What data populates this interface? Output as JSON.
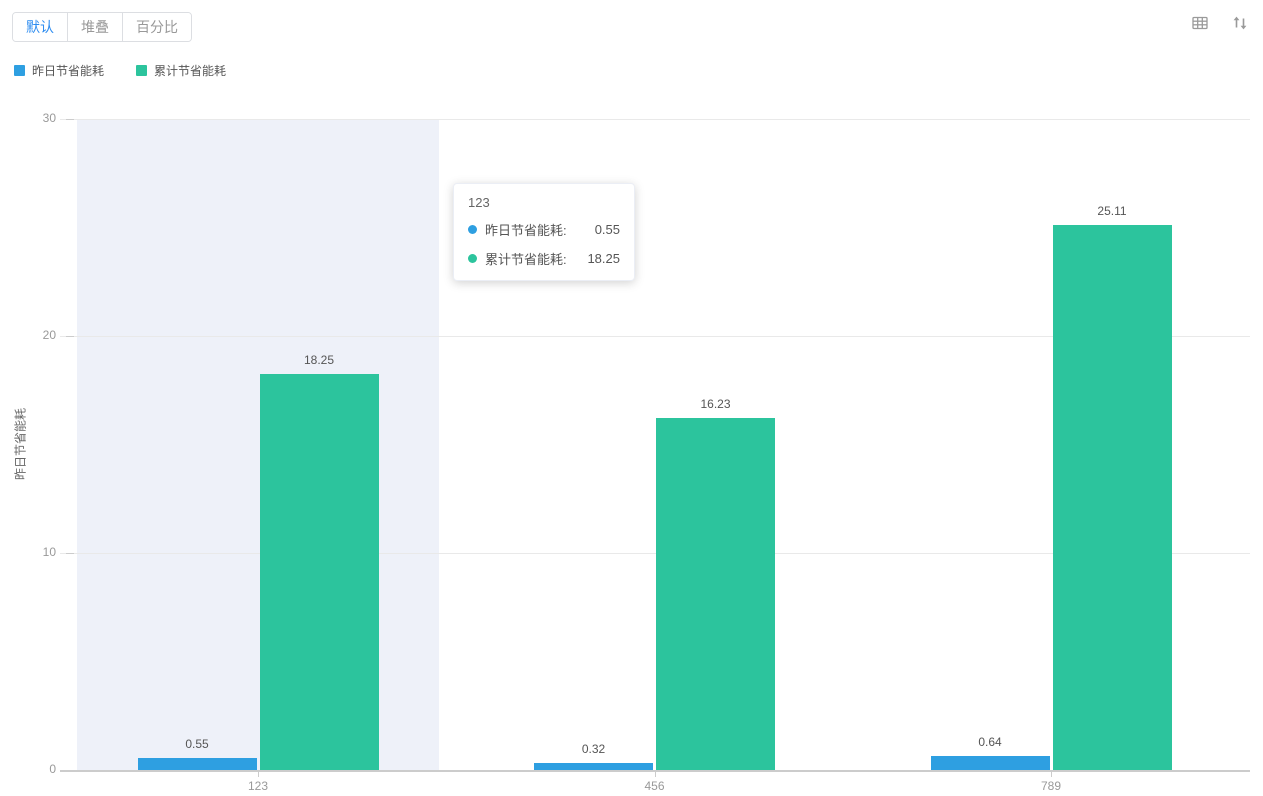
{
  "toolbar": {
    "tabs": [
      {
        "label": "默认",
        "active": true
      },
      {
        "label": "堆叠",
        "active": false
      },
      {
        "label": "百分比",
        "active": false
      }
    ],
    "icons": [
      {
        "name": "table-icon"
      },
      {
        "name": "swap-vertical-icon"
      }
    ],
    "icon_color": "#9a9a9a"
  },
  "legend": {
    "items": [
      {
        "label": "昨日节省能耗",
        "color": "#2e9fe1"
      },
      {
        "label": "累计节省能耗",
        "color": "#2cc49d"
      }
    ]
  },
  "tooltip": {
    "title": "123",
    "rows": [
      {
        "label": "昨日节省能耗:",
        "value": "0.55",
        "color": "#2e9fe1"
      },
      {
        "label": "累计节省能耗:",
        "value": "18.25",
        "color": "#2cc49d"
      }
    ]
  },
  "chart_data": {
    "type": "bar",
    "categories": [
      "123",
      "456",
      "789"
    ],
    "series": [
      {
        "name": "昨日节省能耗",
        "color": "#2e9fe1",
        "values": [
          0.55,
          0.32,
          0.64
        ]
      },
      {
        "name": "累计节省能耗",
        "color": "#2cc49d",
        "values": [
          18.25,
          16.23,
          25.11
        ]
      }
    ],
    "title": "",
    "xlabel": "",
    "ylabel": "昨日节省能耗",
    "ylim": [
      0,
      30
    ],
    "yticks": [
      0,
      10,
      20,
      30
    ],
    "grid": true,
    "legend_position": "top-left",
    "highlighted_category": "123"
  }
}
